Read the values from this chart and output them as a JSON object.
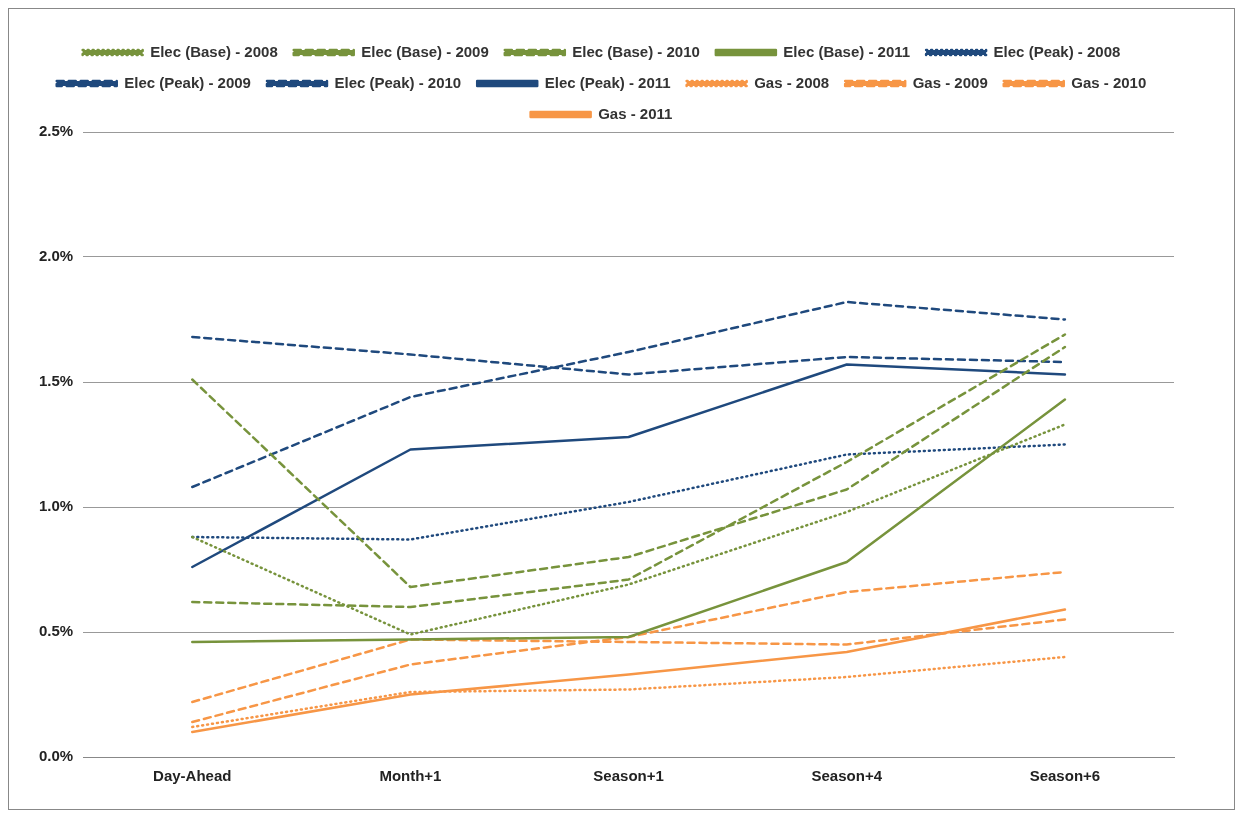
{
  "chart_data": {
    "type": "line",
    "categories": [
      "Day-Ahead",
      "Month+1",
      "Season+1",
      "Season+4",
      "Season+6"
    ],
    "ylim": [
      0,
      2.5
    ],
    "yticks": [
      {
        "value": 0,
        "label": "0.0%"
      },
      {
        "value": 0.5,
        "label": "0.5%"
      },
      {
        "value": 1,
        "label": "1.0%"
      },
      {
        "value": 1.5,
        "label": "1.5%"
      },
      {
        "value": 2,
        "label": "2.0%"
      },
      {
        "value": 2.5,
        "label": "2.5%"
      }
    ],
    "grid": "y",
    "legend": "top",
    "marker": "none",
    "series": [
      {
        "name": "Elec (Base) - 2008",
        "color": "#77933c",
        "line_style": "dotted",
        "values": [
          0.88,
          0.49,
          0.69,
          0.98,
          1.33
        ]
      },
      {
        "name": "Elec (Base) - 2009",
        "color": "#77933c",
        "line_style": "dashed",
        "values": [
          1.51,
          0.68,
          0.8,
          1.07,
          1.64
        ]
      },
      {
        "name": "Elec (Base) - 2010",
        "color": "#77933c",
        "line_style": "dashed",
        "values": [
          0.62,
          0.6,
          0.71,
          1.18,
          1.69
        ]
      },
      {
        "name": "Elec (Base) - 2011",
        "color": "#77933c",
        "line_style": "solid",
        "values": [
          0.46,
          0.47,
          0.48,
          0.78,
          1.43
        ]
      },
      {
        "name": "Elec (Peak) - 2008",
        "color": "#1f497d",
        "line_style": "dotted",
        "values": [
          0.88,
          0.87,
          1.02,
          1.21,
          1.25
        ]
      },
      {
        "name": "Elec (Peak) - 2009",
        "color": "#1f497d",
        "line_style": "dashed",
        "values": [
          1.68,
          1.61,
          1.53,
          1.6,
          1.58
        ]
      },
      {
        "name": "Elec (Peak) - 2010",
        "color": "#1f497d",
        "line_style": "dashed",
        "values": [
          1.08,
          1.44,
          1.62,
          1.82,
          1.75
        ]
      },
      {
        "name": "Elec (Peak) - 2011",
        "color": "#1f497d",
        "line_style": "solid",
        "values": [
          0.76,
          1.23,
          1.28,
          1.57,
          1.53
        ]
      },
      {
        "name": "Gas - 2008",
        "color": "#f79646",
        "line_style": "dotted",
        "values": [
          0.12,
          0.26,
          0.27,
          0.32,
          0.4
        ]
      },
      {
        "name": "Gas - 2009",
        "color": "#f79646",
        "line_style": "dashed",
        "values": [
          0.22,
          0.47,
          0.46,
          0.45,
          0.55
        ]
      },
      {
        "name": "Gas - 2010",
        "color": "#f79646",
        "line_style": "dashed",
        "values": [
          0.14,
          0.37,
          0.48,
          0.66,
          0.74
        ]
      },
      {
        "name": "Gas - 2011",
        "color": "#f79646",
        "line_style": "solid",
        "values": [
          0.1,
          0.25,
          0.33,
          0.42,
          0.59
        ]
      }
    ]
  }
}
